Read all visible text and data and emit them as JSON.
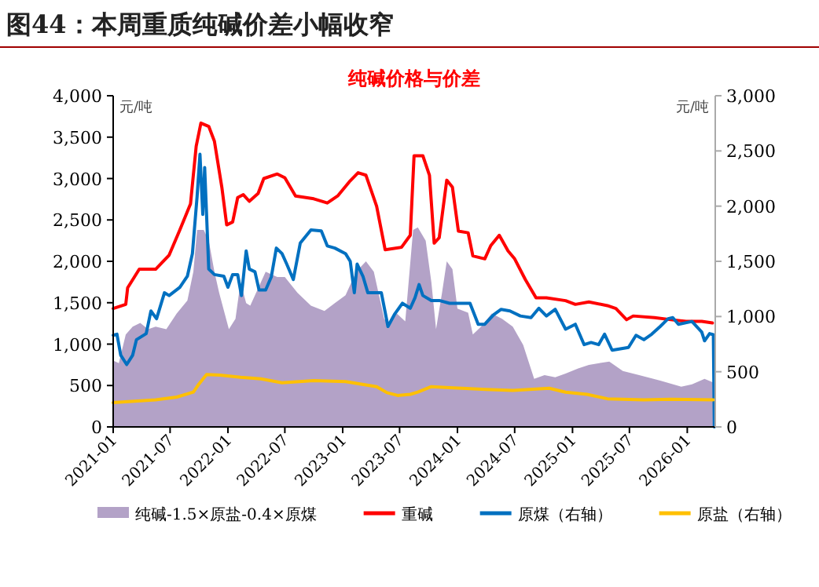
{
  "chart_data": {
    "type": "line",
    "title": "图44：本周重质纯碱价差小幅收窄",
    "subtitle": "纯碱价格与价差",
    "ylabel": "元/吨",
    "y2label": "元/吨",
    "xlim": [
      "2021-01",
      "2026-03-31"
    ],
    "xticks": [
      "2021-01",
      "2021-07",
      "2022-01",
      "2022-07",
      "2023-01",
      "2023-07",
      "2024-01",
      "2024-07",
      "2025-01",
      "2025-07",
      "2026-01"
    ],
    "ylim": [
      0,
      4000
    ],
    "yticks": [
      0,
      {
        "value": 500,
        "label": "500"
      },
      {
        "value": 1000,
        "label": "1,000"
      },
      {
        "value": 1500,
        "label": "1,500"
      },
      {
        "value": 2000,
        "label": "2,000"
      },
      {
        "value": 2500,
        "label": "2,500"
      },
      {
        "value": 3000,
        "label": "3,000"
      },
      {
        "value": 3500,
        "label": "3,500"
      },
      {
        "value": 4000,
        "label": "4,000"
      }
    ],
    "y2lim": [
      0,
      3000
    ],
    "y2ticks": [
      0,
      {
        "value": 500,
        "label": "500"
      },
      {
        "value": 1000,
        "label": "1,000"
      },
      {
        "value": 1500,
        "label": "1,500"
      },
      {
        "value": 2000,
        "label": "2,000"
      },
      {
        "value": 2500,
        "label": "2,500"
      },
      {
        "value": 3000,
        "label": "3,000"
      }
    ],
    "grid": false,
    "legend": "bottom",
    "series": [
      {
        "name": "纯碱-1.5×原盐-0.4×原煤",
        "type": "area",
        "color": "#b3a2c7",
        "x": [
          "2021-01-01",
          "2021-01-19",
          "2021-02-10",
          "2021-03-04",
          "2021-03-28",
          "2021-04-22",
          "2021-05-16",
          "2021-06-19",
          "2021-07-22",
          "2021-08-25",
          "2021-09-13",
          "2021-09-25",
          "2021-10-16",
          "2021-11-01",
          "2021-11-19",
          "2021-12-04",
          "2022-01-04",
          "2022-01-25",
          "2022-02-10",
          "2022-02-28",
          "2022-03-13",
          "2022-04-16",
          "2022-05-01",
          "2022-06-07",
          "2022-07-01",
          "2022-08-10",
          "2022-09-22",
          "2022-11-04",
          "2022-12-07",
          "2023-01-10",
          "2023-02-13",
          "2023-03-16",
          "2023-04-10",
          "2023-05-13",
          "2023-05-28",
          "2023-06-22",
          "2023-07-19",
          "2023-08-13",
          "2023-08-28",
          "2023-09-22",
          "2023-10-10",
          "2023-10-25",
          "2023-11-13",
          "2023-11-28",
          "2023-12-16",
          "2024-01-01",
          "2024-02-04",
          "2024-02-19",
          "2024-03-16",
          "2024-04-19",
          "2024-05-22",
          "2024-06-25",
          "2024-07-28",
          "2024-09-01",
          "2024-10-04",
          "2024-11-07",
          "2024-12-10",
          "2025-01-19",
          "2025-02-22",
          "2025-04-28",
          "2025-06-10",
          "2025-08-01",
          "2025-10-07",
          "2025-12-13",
          "2026-01-16",
          "2026-02-25",
          "2026-03-25"
        ],
        "values": [
          800,
          770,
          1115,
          1210,
          1255,
          1180,
          1210,
          1180,
          1370,
          1525,
          1875,
          2380,
          2380,
          2250,
          1875,
          1620,
          1180,
          1305,
          1750,
          1495,
          1465,
          1750,
          1875,
          1810,
          1810,
          1620,
          1465,
          1400,
          1495,
          1590,
          1875,
          2000,
          1875,
          1305,
          1245,
          1370,
          1275,
          2380,
          2410,
          2250,
          1750,
          1180,
          1620,
          2000,
          1905,
          1430,
          1380,
          1115,
          1210,
          1370,
          1305,
          1210,
          990,
          580,
          625,
          600,
          645,
          705,
          750,
          790,
          675,
          625,
          560,
          485,
          515,
          580,
          535
        ]
      },
      {
        "name": "重碱",
        "color": "#ff0000",
        "x": [
          "2021-01-01",
          "2021-02-10",
          "2021-02-16",
          "2021-03-25",
          "2021-05-16",
          "2021-06-28",
          "2021-08-01",
          "2021-09-04",
          "2021-09-22",
          "2021-10-07",
          "2021-11-01",
          "2021-11-19",
          "2021-12-13",
          "2021-12-28",
          "2022-01-16",
          "2022-02-01",
          "2022-02-19",
          "2022-03-10",
          "2022-04-07",
          "2022-04-25",
          "2022-06-07",
          "2022-07-01",
          "2022-08-04",
          "2022-10-01",
          "2022-11-13",
          "2022-12-16",
          "2023-01-22",
          "2023-02-19",
          "2023-03-16",
          "2023-04-19",
          "2023-05-16",
          "2023-07-07",
          "2023-08-04",
          "2023-08-16",
          "2023-09-13",
          "2023-10-04",
          "2023-10-19",
          "2023-11-04",
          "2023-11-28",
          "2023-12-16",
          "2024-01-04",
          "2024-02-04",
          "2024-02-19",
          "2024-03-28",
          "2024-04-16",
          "2024-05-13",
          "2024-06-10",
          "2024-07-01",
          "2024-08-04",
          "2024-09-07",
          "2024-10-10",
          "2024-12-10",
          "2025-01-10",
          "2025-02-22",
          "2025-04-22",
          "2025-05-19",
          "2025-06-22",
          "2025-07-13",
          "2025-09-19",
          "2025-11-10",
          "2025-12-28",
          "2026-02-16",
          "2026-03-22"
        ],
        "values": [
          1430,
          1480,
          1680,
          1905,
          1905,
          2075,
          2380,
          2695,
          3390,
          3670,
          3630,
          3450,
          2885,
          2440,
          2475,
          2770,
          2805,
          2725,
          2820,
          3000,
          3055,
          3010,
          2790,
          2755,
          2705,
          2790,
          2960,
          3070,
          3040,
          2665,
          2140,
          2170,
          2315,
          3275,
          3275,
          3040,
          2220,
          2285,
          2980,
          2895,
          2365,
          2345,
          2065,
          2030,
          2190,
          2315,
          2125,
          2030,
          1780,
          1560,
          1560,
          1525,
          1480,
          1510,
          1465,
          1430,
          1295,
          1340,
          1320,
          1295,
          1275,
          1275,
          1255
        ]
      },
      {
        "name": "原煤（右轴）",
        "axis": "y2",
        "color": "#0070c0",
        "x": [
          "2021-01-01",
          "2021-01-13",
          "2021-01-25",
          "2021-02-13",
          "2021-03-04",
          "2021-03-16",
          "2021-04-16",
          "2021-05-01",
          "2021-05-19",
          "2021-06-13",
          "2021-06-28",
          "2021-08-01",
          "2021-08-25",
          "2021-09-10",
          "2021-09-25",
          "2021-10-04",
          "2021-10-13",
          "2021-10-19",
          "2021-11-01",
          "2021-11-19",
          "2021-12-19",
          "2022-01-01",
          "2022-01-16",
          "2022-02-01",
          "2022-02-13",
          "2022-02-28",
          "2022-03-10",
          "2022-03-28",
          "2022-04-10",
          "2022-05-01",
          "2022-05-19",
          "2022-06-04",
          "2022-06-22",
          "2022-07-07",
          "2022-07-28",
          "2022-08-19",
          "2022-09-22",
          "2022-10-25",
          "2022-11-13",
          "2022-12-07",
          "2023-01-10",
          "2023-01-25",
          "2023-02-07",
          "2023-02-16",
          "2023-03-07",
          "2023-03-22",
          "2023-05-04",
          "2023-05-25",
          "2023-06-16",
          "2023-07-10",
          "2023-08-04",
          "2023-08-19",
          "2023-09-01",
          "2023-09-13",
          "2023-10-10",
          "2023-11-04",
          "2023-12-07",
          "2024-01-10",
          "2024-02-10",
          "2024-03-07",
          "2024-03-28",
          "2024-04-25",
          "2024-05-19",
          "2024-06-16",
          "2024-07-19",
          "2024-08-22",
          "2024-09-16",
          "2024-10-10",
          "2024-11-07",
          "2024-12-10",
          "2025-01-10",
          "2025-02-07",
          "2025-03-01",
          "2025-03-25",
          "2025-04-13",
          "2025-05-07",
          "2025-06-28",
          "2025-07-22",
          "2025-08-16",
          "2025-09-10",
          "2025-10-07",
          "2025-11-01",
          "2025-11-16",
          "2025-12-04",
          "2026-01-16",
          "2026-02-16",
          "2026-02-25",
          "2026-03-13",
          "2026-03-25",
          "2026-03-28"
        ],
        "values": [
          830,
          840,
          650,
          565,
          650,
          790,
          845,
          1050,
          980,
          1215,
          1190,
          1265,
          1365,
          1570,
          2090,
          2470,
          1925,
          2350,
          1430,
          1380,
          1365,
          1265,
          1380,
          1380,
          1190,
          1595,
          1430,
          1405,
          1240,
          1240,
          1360,
          1620,
          1570,
          1475,
          1335,
          1665,
          1785,
          1775,
          1640,
          1620,
          1570,
          1500,
          1215,
          1475,
          1360,
          1215,
          1215,
          910,
          1025,
          1120,
          1075,
          1170,
          1290,
          1190,
          1145,
          1145,
          1120,
          1120,
          1120,
          930,
          930,
          1015,
          1065,
          1050,
          1005,
          990,
          1075,
          1005,
          1065,
          885,
          930,
          745,
          765,
          745,
          840,
          695,
          720,
          830,
          790,
          840,
          910,
          980,
          990,
          930,
          955,
          860,
          780,
          845,
          835,
          0
        ]
      },
      {
        "name": "原盐（右轴）",
        "axis": "y2",
        "color": "#ffc000",
        "x": [
          "2021-01-01",
          "2021-05-16",
          "2021-07-22",
          "2021-09-13",
          "2021-10-01",
          "2021-10-25",
          "2021-12-07",
          "2022-02-10",
          "2022-04-16",
          "2022-06-22",
          "2022-10-01",
          "2023-01-10",
          "2023-04-19",
          "2023-05-22",
          "2023-06-25",
          "2023-08-04",
          "2023-08-28",
          "2023-10-10",
          "2023-12-07",
          "2024-04-01",
          "2024-06-25",
          "2024-10-19",
          "2024-12-10",
          "2025-02-16",
          "2025-04-22",
          "2025-08-16",
          "2025-11-10",
          "2026-03-25"
        ],
        "values": [
          220,
          245,
          270,
          315,
          390,
          475,
          470,
          450,
          435,
          400,
          420,
          410,
          365,
          310,
          285,
          295,
          315,
          365,
          355,
          340,
          330,
          350,
          315,
          295,
          255,
          245,
          250,
          245
        ]
      }
    ]
  }
}
